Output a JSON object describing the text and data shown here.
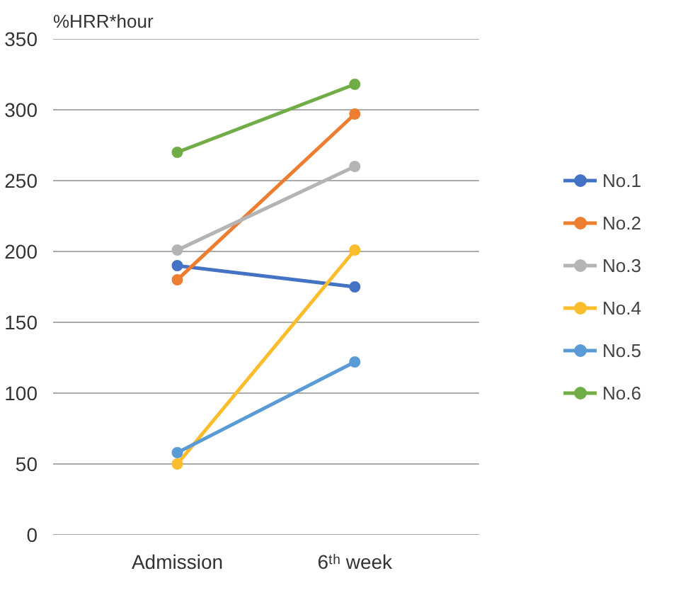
{
  "chart_data": {
    "type": "line",
    "ylabel": "%HRR*hour",
    "categories": [
      "Admission",
      "6ᵗʰ week"
    ],
    "series": [
      {
        "name": "No.1",
        "color": "#4472c4",
        "values": [
          190,
          175
        ]
      },
      {
        "name": "No.2",
        "color": "#ed7d31",
        "values": [
          180,
          297
        ]
      },
      {
        "name": "No.3",
        "color": "#b4b4b4",
        "values": [
          201,
          260
        ]
      },
      {
        "name": "No.4",
        "color": "#fbbd2c",
        "values": [
          50,
          201
        ]
      },
      {
        "name": "No.5",
        "color": "#5b9bd5",
        "values": [
          58,
          122
        ]
      },
      {
        "name": "No.6",
        "color": "#70ad47",
        "values": [
          270,
          318
        ]
      }
    ],
    "ylim": [
      0,
      350
    ],
    "yticks": [
      0,
      50,
      100,
      150,
      200,
      250,
      300,
      350
    ],
    "grid": "y",
    "legend": "right",
    "marker": "circle",
    "line_style": "solid"
  }
}
